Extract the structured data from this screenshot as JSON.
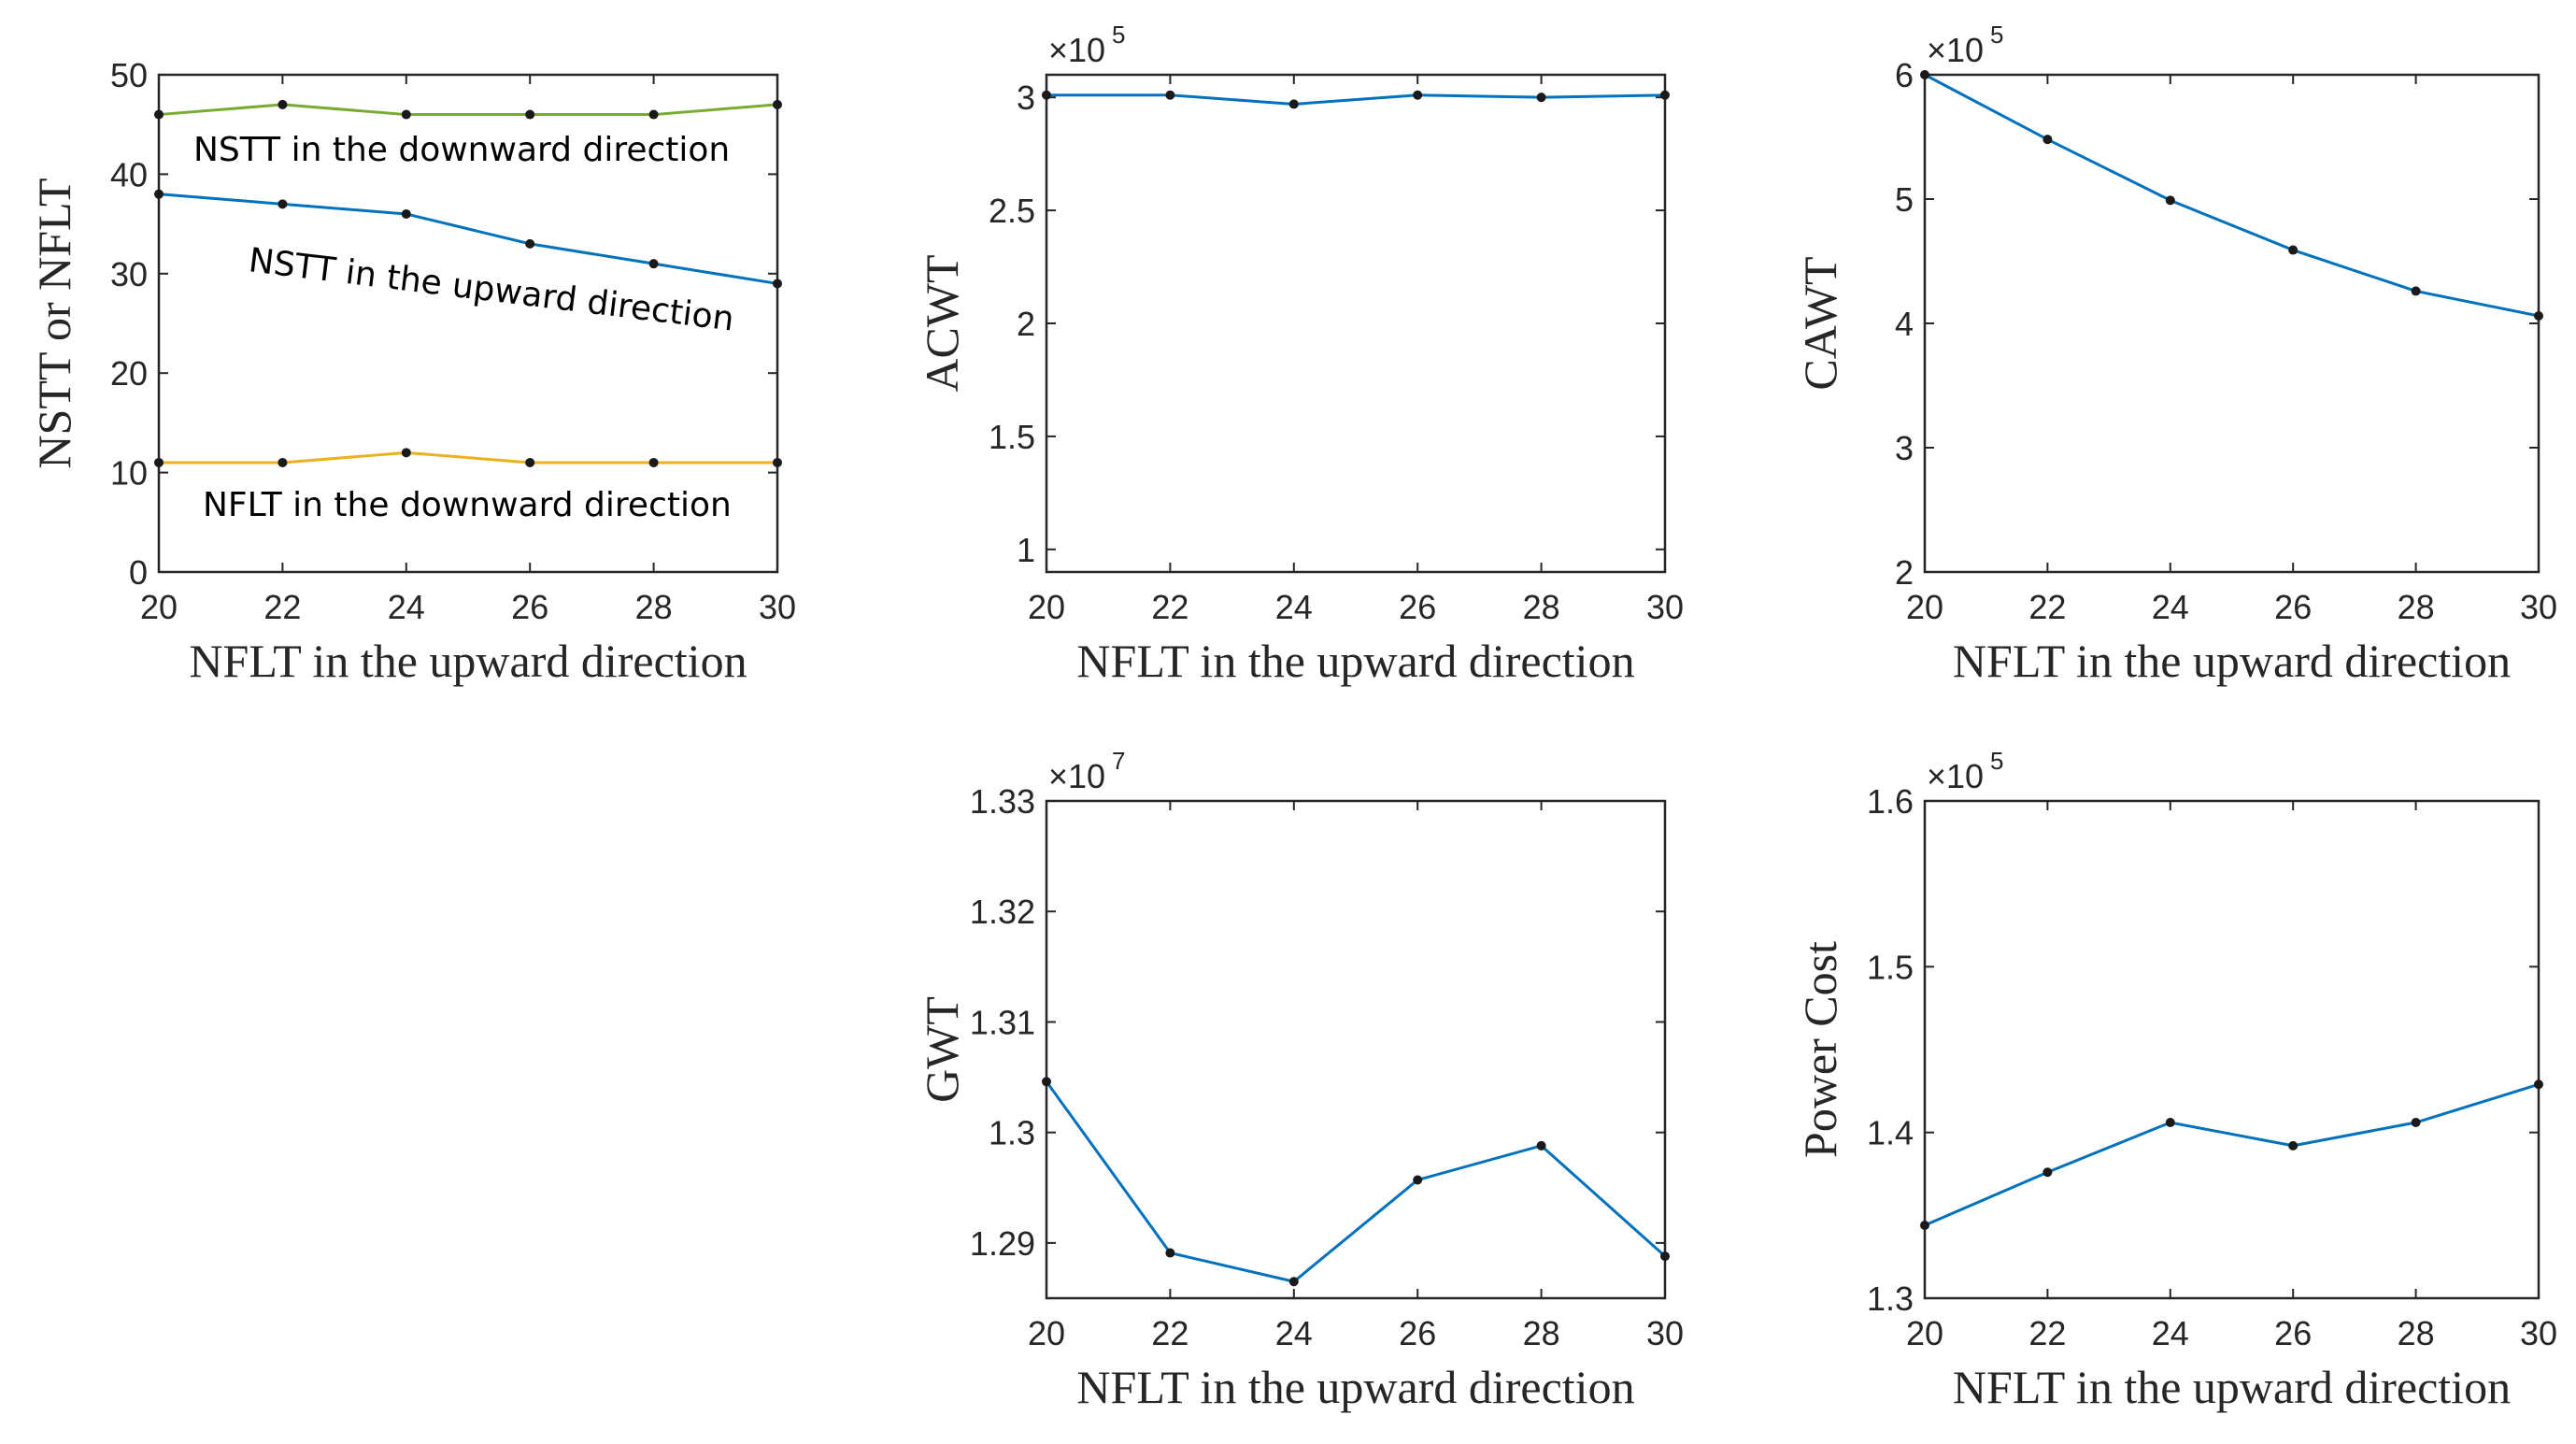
{
  "chart_data": [
    {
      "id": "nstt-nflt",
      "type": "line",
      "xlabel": "NFLT in the upward direction",
      "ylabel": "NSTT or NFLT",
      "xlim": [
        20,
        30
      ],
      "ylim": [
        0,
        50
      ],
      "xticks": [
        20,
        22,
        24,
        26,
        28,
        30
      ],
      "yticks": [
        0,
        10,
        20,
        30,
        40,
        50
      ],
      "multiplier": "",
      "x": [
        20,
        22,
        24,
        26,
        28,
        30
      ],
      "series": [
        {
          "name": "NSTT in the downward direction",
          "color": "#77ac30",
          "values": [
            46,
            47,
            46,
            46,
            46,
            47
          ]
        },
        {
          "name": "NSTT in the upward direction",
          "color": "#0072bd",
          "values": [
            38,
            37,
            36,
            33,
            31,
            29
          ]
        },
        {
          "name": "NFLT in the downward direction",
          "color": "#edb120",
          "values": [
            11,
            11,
            12,
            11,
            11,
            11
          ]
        }
      ],
      "annotations": [
        {
          "text": "NSTT in the downward direction"
        },
        {
          "text": "NSTT in the upward direction"
        },
        {
          "text": "NFLT in the downward direction"
        }
      ]
    },
    {
      "id": "acwt",
      "type": "line",
      "xlabel": "NFLT in the upward direction",
      "ylabel": "ACWT",
      "xlim": [
        20,
        30
      ],
      "ylim": [
        0.9,
        3.1
      ],
      "xticks": [
        20,
        22,
        24,
        26,
        28,
        30
      ],
      "yticks": [
        1,
        1.5,
        2,
        2.5,
        3
      ],
      "multiplier": "×10",
      "multiplier_exp": "5",
      "x": [
        20,
        22,
        24,
        26,
        28,
        30
      ],
      "series": [
        {
          "name": "ACWT",
          "color": "#0072bd",
          "values": [
            3.01,
            3.01,
            2.97,
            3.01,
            3.0,
            3.01
          ]
        }
      ]
    },
    {
      "id": "cawt",
      "type": "line",
      "xlabel": "NFLT in the upward direction",
      "ylabel": "CAWT",
      "xlim": [
        20,
        30
      ],
      "ylim": [
        2,
        6
      ],
      "xticks": [
        20,
        22,
        24,
        26,
        28,
        30
      ],
      "yticks": [
        2,
        3,
        4,
        5,
        6
      ],
      "multiplier": "×10",
      "multiplier_exp": "5",
      "x": [
        20,
        22,
        24,
        26,
        28,
        30
      ],
      "series": [
        {
          "name": "CAWT",
          "color": "#0072bd",
          "values": [
            6.0,
            5.48,
            4.99,
            4.59,
            4.26,
            4.06
          ]
        }
      ]
    },
    {
      "id": "gwt",
      "type": "line",
      "xlabel": "NFLT in the upward direction",
      "ylabel": "GWT",
      "xlim": [
        20,
        30
      ],
      "ylim": [
        1.285,
        1.33
      ],
      "xticks": [
        20,
        22,
        24,
        26,
        28,
        30
      ],
      "yticks": [
        1.29,
        1.3,
        1.31,
        1.32,
        1.33
      ],
      "multiplier": "×10",
      "multiplier_exp": "7",
      "x": [
        20,
        22,
        24,
        26,
        28,
        30
      ],
      "series": [
        {
          "name": "GWT",
          "color": "#0072bd",
          "values": [
            1.3046,
            1.2891,
            1.2865,
            1.2957,
            1.2988,
            1.2888
          ]
        }
      ]
    },
    {
      "id": "power-cost",
      "type": "line",
      "xlabel": "NFLT in the upward direction",
      "ylabel": "Power Cost",
      "xlim": [
        20,
        30
      ],
      "ylim": [
        1.3,
        1.6
      ],
      "xticks": [
        20,
        22,
        24,
        26,
        28,
        30
      ],
      "yticks": [
        1.3,
        1.4,
        1.5,
        1.6
      ],
      "multiplier": "×10",
      "multiplier_exp": "5",
      "x": [
        20,
        22,
        24,
        26,
        28,
        30
      ],
      "series": [
        {
          "name": "Power Cost",
          "color": "#0072bd",
          "values": [
            1.344,
            1.376,
            1.406,
            1.392,
            1.406,
            1.429
          ]
        }
      ]
    }
  ]
}
